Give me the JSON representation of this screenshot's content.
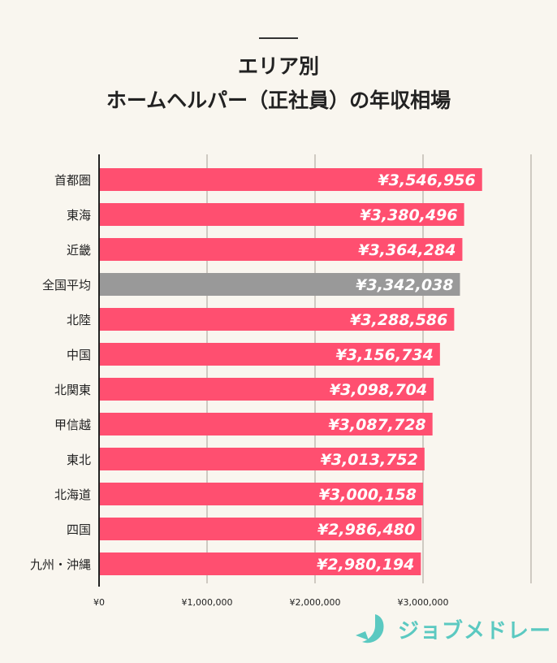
{
  "chart_data": {
    "type": "bar",
    "orientation": "horizontal",
    "title": [
      "エリア別",
      "ホームヘルパー（正社員）の年収相場"
    ],
    "categories": [
      "首都圏",
      "東海",
      "近畿",
      "全国平均",
      "北陸",
      "中国",
      "北関東",
      "甲信越",
      "東北",
      "北海道",
      "四国",
      "九州・沖縄"
    ],
    "values": [
      3546956,
      3380496,
      3364284,
      3342038,
      3288586,
      3156734,
      3098704,
      3087728,
      3013752,
      3000158,
      2986480,
      2980194
    ],
    "data_labels": [
      "¥3,546,956",
      "¥3,380,496",
      "¥3,364,284",
      "¥3,342,038",
      "¥3,288,586",
      "¥3,156,734",
      "¥3,098,704",
      "¥3,087,728",
      "¥3,013,752",
      "¥3,000,158",
      "¥2,986,480",
      "¥2,980,194"
    ],
    "xlim": [
      0,
      4000000
    ],
    "x_ticks": [
      0,
      1000000,
      2000000,
      3000000
    ],
    "x_tick_labels": [
      "¥0",
      "¥1,000,000",
      "¥2,000,000",
      "¥3,000,000"
    ],
    "grid": true,
    "colors": {
      "default": "#ff4f70",
      "highlight": "#999999",
      "highlight_category": "全国平均"
    }
  },
  "logo": {
    "text": "ジョブメドレー",
    "color": "#5bc9c1"
  }
}
